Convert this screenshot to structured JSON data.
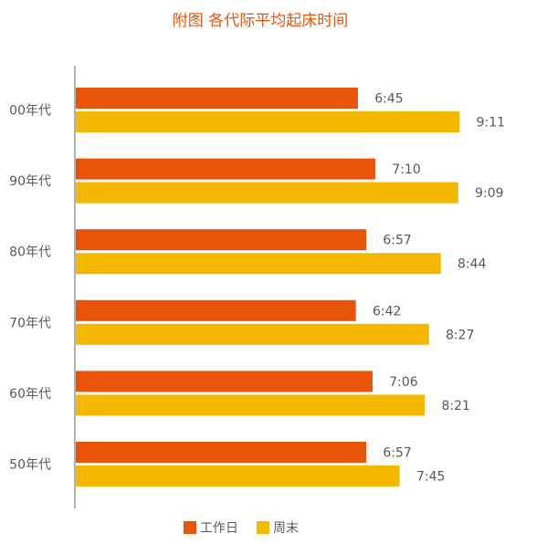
{
  "colors": {
    "workday": "#E8540A",
    "weekend": "#F5B800",
    "title": "#E8540A",
    "axis": "#999999",
    "text": "#595959",
    "background": "#FFFFFF"
  },
  "chart_data": {
    "type": "bar",
    "orientation": "horizontal",
    "title": "附图 各代际平均起床时间",
    "xlabel": "",
    "ylabel": "",
    "categories": [
      "00年代",
      "90年代",
      "80年代",
      "70年代",
      "60年代",
      "50年代"
    ],
    "series": [
      {
        "name": "工作日",
        "color": "#E8540A",
        "values": [
          "6:45",
          "7:10",
          "6:57",
          "6:42",
          "7:06",
          "6:57"
        ]
      },
      {
        "name": "周末",
        "color": "#F5B800",
        "values": [
          "9:11",
          "9:09",
          "8:44",
          "8:27",
          "8:21",
          "7:45"
        ]
      }
    ],
    "xlim": [
      "0:00",
      "9:30"
    ],
    "grid": false,
    "x_axis_visible": false,
    "data_labels": true,
    "legend_position": "bottom"
  }
}
